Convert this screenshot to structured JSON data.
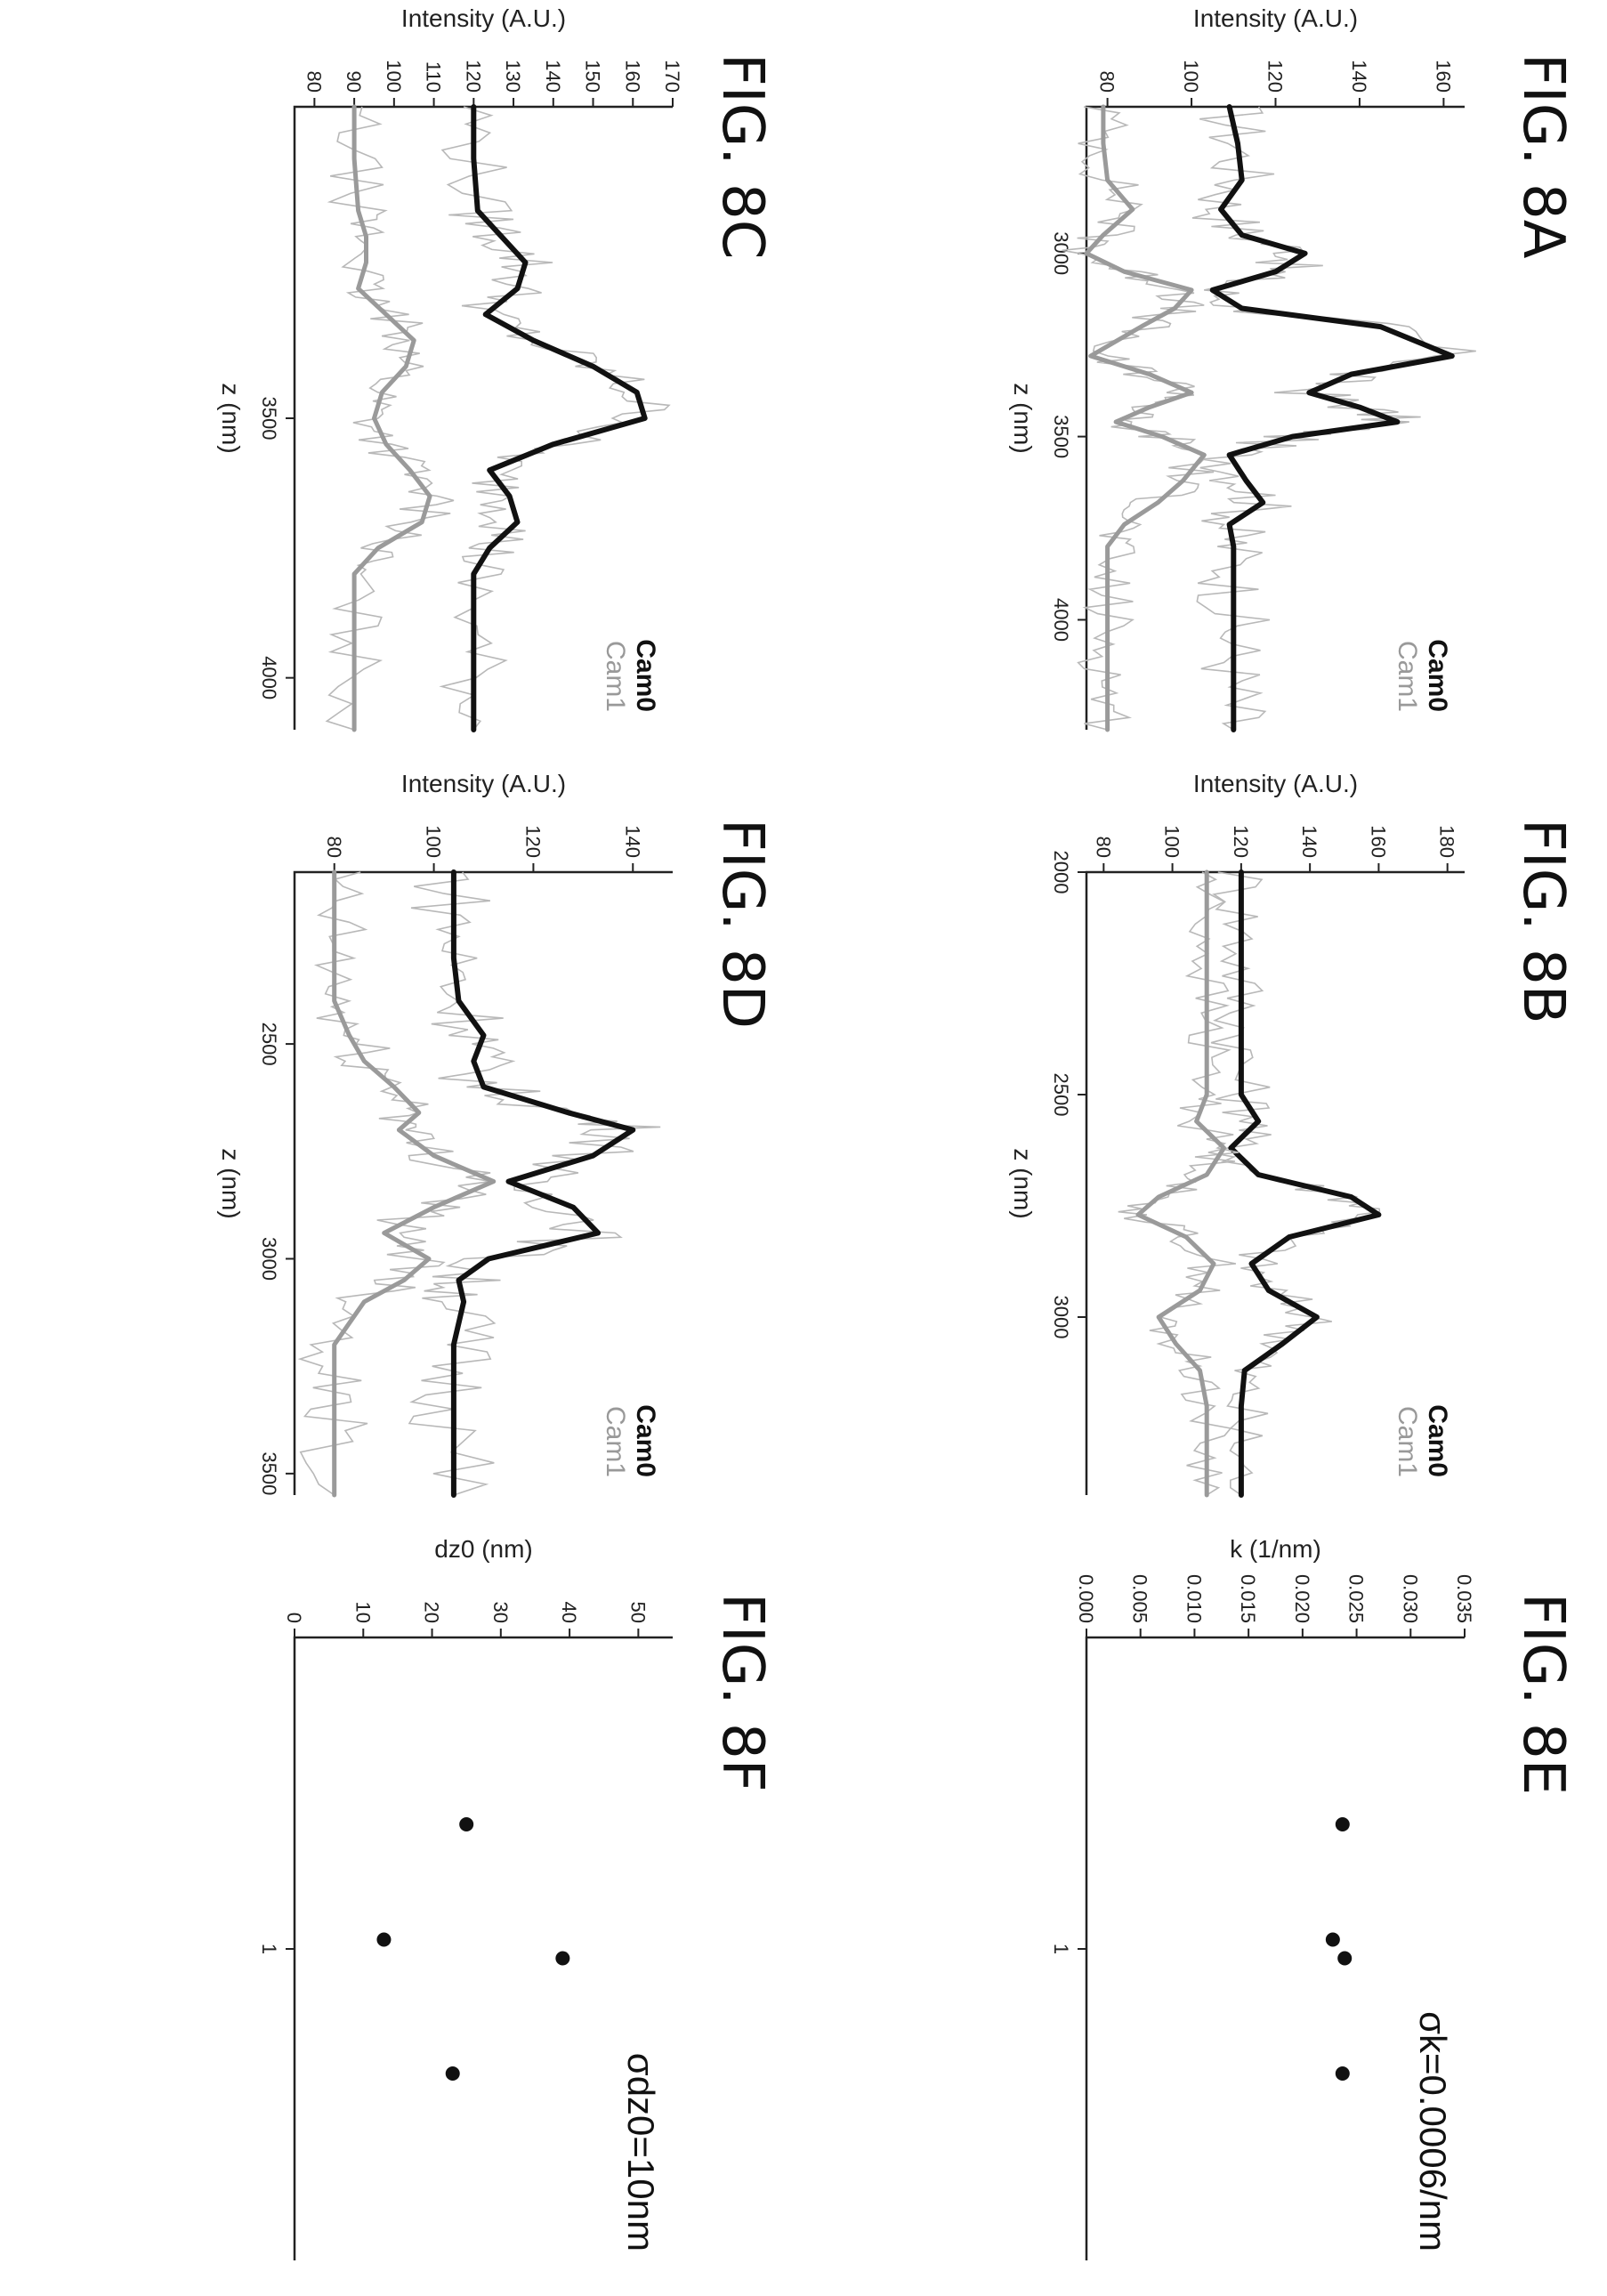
{
  "chart_data": [
    {
      "id": "8A",
      "type": "line",
      "title": "FIG. 8A",
      "xlabel": "z (nm)",
      "ylabel": "Intensity (A.U.)",
      "xlim": [
        2600,
        4300
      ],
      "ylim": [
        75,
        165
      ],
      "xticks": [
        3000,
        3500,
        4000
      ],
      "yticks": [
        80,
        100,
        120,
        140,
        160
      ],
      "legend": [
        "Cam0",
        "Cam1"
      ],
      "legend_position": "top-right",
      "series": [
        {
          "name": "Cam0",
          "x": [
            2600,
            2700,
            2800,
            2880,
            2950,
            3000,
            3050,
            3100,
            3150,
            3200,
            3280,
            3330,
            3380,
            3420,
            3460,
            3500,
            3550,
            3620,
            3680,
            3740,
            3800,
            3900,
            4000,
            4100,
            4200,
            4300
          ],
          "y": [
            109,
            111,
            112,
            107,
            112,
            127,
            120,
            105,
            112,
            145,
            162,
            138,
            128,
            140,
            149,
            124,
            109,
            113,
            117,
            109,
            110,
            110,
            110,
            110,
            110,
            110
          ]
        },
        {
          "name": "Cam1",
          "x": [
            2600,
            2700,
            2800,
            2880,
            2950,
            3000,
            3050,
            3100,
            3150,
            3200,
            3280,
            3330,
            3380,
            3420,
            3460,
            3500,
            3550,
            3620,
            3680,
            3740,
            3800,
            3900,
            4000,
            4100,
            4200,
            4300
          ],
          "y": [
            79,
            79,
            80,
            86,
            79,
            75,
            84,
            100,
            96,
            88,
            76,
            90,
            100,
            90,
            82,
            93,
            103,
            98,
            92,
            84,
            80,
            80,
            80,
            80,
            80,
            80
          ]
        }
      ]
    },
    {
      "id": "8B",
      "type": "line",
      "title": "FIG. 8B",
      "xlabel": "z (nm)",
      "ylabel": "Intensity (A.U.)",
      "xlim": [
        2000,
        3400
      ],
      "ylim": [
        75,
        185
      ],
      "xticks": [
        2000,
        2500,
        3000
      ],
      "yticks": [
        80,
        100,
        120,
        140,
        160,
        180
      ],
      "legend": [
        "Cam0",
        "Cam1"
      ],
      "legend_position": "top-right",
      "series": [
        {
          "name": "Cam0",
          "x": [
            2000,
            2100,
            2200,
            2300,
            2400,
            2500,
            2560,
            2620,
            2680,
            2730,
            2770,
            2820,
            2880,
            2940,
            3000,
            3060,
            3120,
            3200,
            3300,
            3400
          ],
          "y": [
            120,
            120,
            120,
            120,
            120,
            120,
            125,
            117,
            125,
            152,
            160,
            134,
            123,
            128,
            142,
            132,
            121,
            120,
            120,
            120
          ],
          "x_alt": []
        },
        {
          "name": "Cam1",
          "x": [
            2000,
            2100,
            2200,
            2300,
            2400,
            2500,
            2560,
            2620,
            2680,
            2730,
            2770,
            2820,
            2880,
            2940,
            3000,
            3060,
            3120,
            3200,
            3300,
            3400
          ],
          "y": [
            110,
            110,
            110,
            110,
            110,
            110,
            107,
            115,
            110,
            96,
            90,
            104,
            112,
            108,
            96,
            101,
            108,
            110,
            110,
            110
          ]
        }
      ]
    },
    {
      "id": "8C",
      "type": "line",
      "title": "FIG. 8C",
      "xlabel": "z (nm)",
      "ylabel": "Intensity (A.U.)",
      "xlim": [
        2900,
        4100
      ],
      "ylim": [
        75,
        170
      ],
      "xticks": [
        3500,
        4000
      ],
      "yticks": [
        80,
        90,
        100,
        110,
        120,
        130,
        140,
        150,
        160,
        170
      ],
      "legend": [
        "Cam0",
        "Cam1"
      ],
      "legend_position": "top-right",
      "series": [
        {
          "name": "Cam0",
          "x": [
            2900,
            3000,
            3100,
            3150,
            3200,
            3250,
            3300,
            3350,
            3400,
            3450,
            3500,
            3550,
            3600,
            3650,
            3700,
            3750,
            3800,
            3900,
            4000,
            4100
          ],
          "y": [
            120,
            120,
            121,
            127,
            133,
            131,
            123,
            135,
            150,
            161,
            163,
            140,
            124,
            129,
            131,
            124,
            120,
            120,
            120,
            120
          ]
        },
        {
          "name": "Cam1",
          "x": [
            2900,
            3000,
            3100,
            3150,
            3200,
            3250,
            3300,
            3350,
            3400,
            3450,
            3500,
            3550,
            3600,
            3650,
            3700,
            3750,
            3800,
            3900,
            4000,
            4100
          ],
          "y": [
            90,
            90,
            91,
            93,
            93,
            91,
            98,
            105,
            103,
            97,
            95,
            98,
            104,
            109,
            107,
            96,
            90,
            90,
            90,
            90
          ]
        }
      ]
    },
    {
      "id": "8D",
      "type": "line",
      "title": "FIG. 8D",
      "xlabel": "z (nm)",
      "ylabel": "Intensity (A.U.)",
      "xlim": [
        2100,
        3550
      ],
      "ylim": [
        72,
        148
      ],
      "xticks": [
        2500,
        3000,
        3500
      ],
      "yticks": [
        80,
        100,
        120,
        140
      ],
      "legend": [
        "Cam0",
        "Cam1"
      ],
      "legend_position": "top-right",
      "series": [
        {
          "name": "Cam0",
          "x": [
            2100,
            2200,
            2300,
            2400,
            2480,
            2540,
            2600,
            2660,
            2700,
            2760,
            2820,
            2880,
            2940,
            3000,
            3050,
            3100,
            3200,
            3300,
            3400,
            3550
          ],
          "y": [
            104,
            104,
            104,
            105,
            110,
            108,
            110,
            127,
            140,
            132,
            115,
            128,
            133,
            111,
            105,
            106,
            104,
            104,
            104,
            104
          ]
        },
        {
          "name": "Cam1",
          "x": [
            2100,
            2200,
            2300,
            2400,
            2480,
            2540,
            2600,
            2660,
            2700,
            2760,
            2820,
            2880,
            2940,
            3000,
            3050,
            3100,
            3200,
            3300,
            3400,
            3550
          ],
          "y": [
            80,
            80,
            80,
            80,
            83,
            86,
            92,
            97,
            93,
            100,
            112,
            100,
            90,
            99,
            94,
            86,
            80,
            80,
            80,
            80
          ]
        }
      ]
    },
    {
      "id": "8E",
      "type": "scatter",
      "title": "FIG. 8E",
      "ylabel": "k (1/nm)",
      "xlim": [
        0,
        2
      ],
      "ylim": [
        0,
        0.035
      ],
      "xticks": [
        1
      ],
      "xtick_labels": [
        "1"
      ],
      "yticks": [
        0.0,
        0.005,
        0.01,
        0.015,
        0.02,
        0.025,
        0.03,
        0.035
      ],
      "ytick_labels": [
        "0.000",
        "0.005",
        "0.010",
        "0.015",
        "0.020",
        "0.025",
        "0.030",
        "0.035"
      ],
      "annotation": "σk=0.0006/nm",
      "points": [
        {
          "x": 0.6,
          "y": 0.0237
        },
        {
          "x": 0.97,
          "y": 0.0228
        },
        {
          "x": 1.03,
          "y": 0.0239
        },
        {
          "x": 1.4,
          "y": 0.0237
        }
      ]
    },
    {
      "id": "8F",
      "type": "scatter",
      "title": "FIG. 8F",
      "ylabel": "dz0 (nm)",
      "xlim": [
        0,
        2
      ],
      "ylim": [
        0,
        55
      ],
      "xticks": [
        1
      ],
      "xtick_labels": [
        "1"
      ],
      "yticks": [
        0,
        10,
        20,
        30,
        40,
        50
      ],
      "ytick_labels": [
        "0",
        "10",
        "20",
        "30",
        "40",
        "50"
      ],
      "annotation": "σdz0=10nm",
      "points": [
        {
          "x": 0.6,
          "y": 25
        },
        {
          "x": 0.97,
          "y": 13
        },
        {
          "x": 1.03,
          "y": 39
        },
        {
          "x": 1.4,
          "y": 23
        }
      ]
    }
  ],
  "figures": {
    "8A": "FIG. 8A",
    "8B": "FIG. 8B",
    "8C": "FIG. 8C",
    "8D": "FIG. 8D",
    "8E": "FIG. 8E",
    "8F": "FIG. 8F"
  },
  "colors": {
    "cam0": "#111111",
    "cam1": "#9a9a9a",
    "axis": "#222222"
  }
}
